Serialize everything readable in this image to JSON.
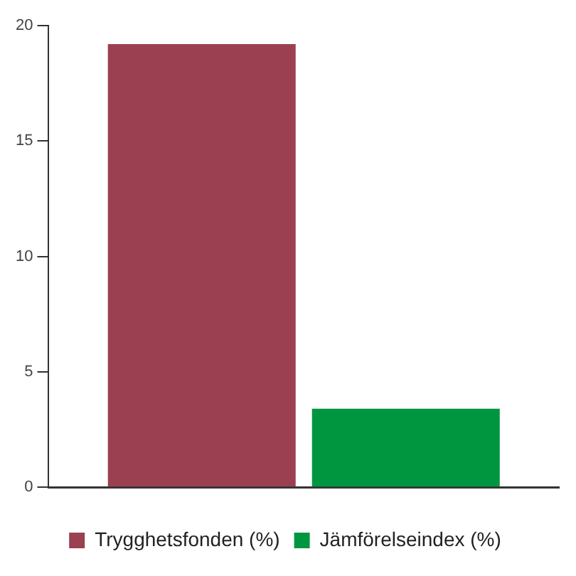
{
  "chart_data": {
    "type": "bar",
    "categories": [
      null
    ],
    "series": [
      {
        "name": "Trygghetsfonden (%)",
        "color": "#9b4050",
        "values": [
          19.2
        ]
      },
      {
        "name": "Jämförelseindex (%)",
        "color": "#00963f",
        "values": [
          3.4
        ]
      }
    ],
    "ylim": [
      0,
      20
    ],
    "yticks": [
      0,
      5,
      10,
      15,
      20
    ],
    "grid": false,
    "legend": "bottom"
  }
}
